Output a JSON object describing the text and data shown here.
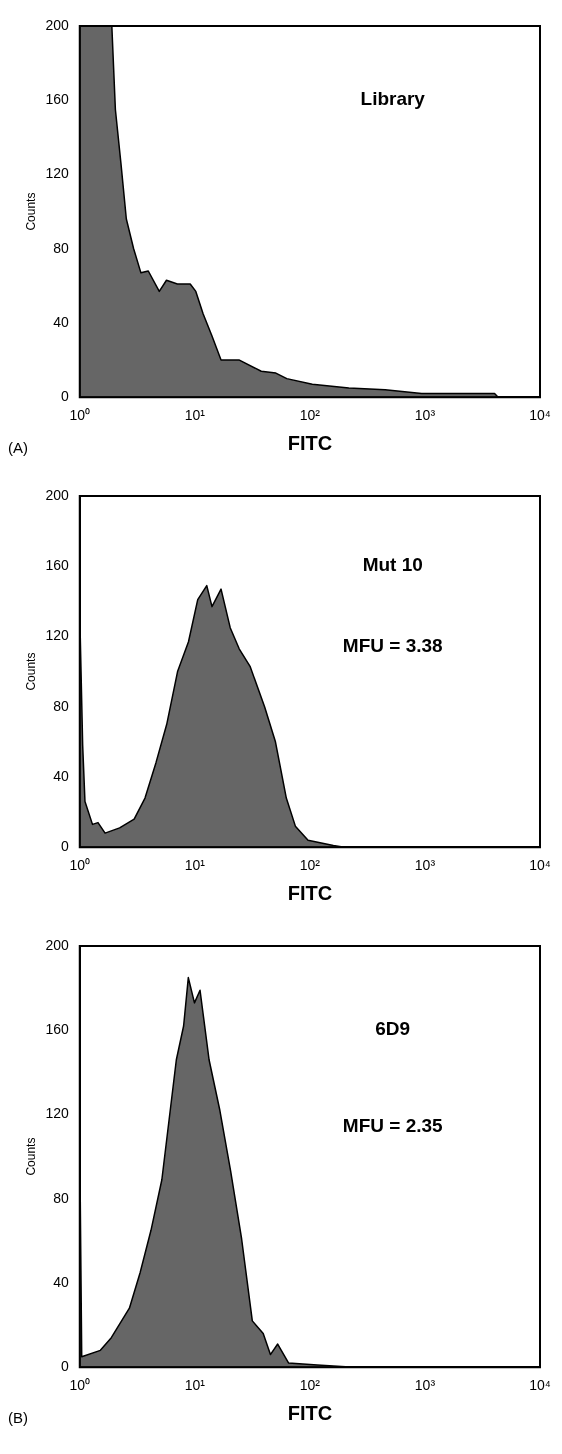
{
  "chart_data": [
    {
      "type": "area",
      "title": "(A)",
      "xlabel": "FITC",
      "ylabel": "Counts",
      "annotations": [
        "Library"
      ],
      "log": "x",
      "grid": false,
      "legend": false,
      "marker": "none",
      "color": "#404040",
      "x": [
        1,
        1.9,
        1.93,
        2.04,
        2.28,
        2.54,
        2.94,
        3.4,
        3.94,
        4.91,
        5.67,
        7.06,
        9.12,
        10.2,
        11.8,
        14.1,
        16.9,
        24.4,
        37.8,
        50.6,
        63,
        105,
        218,
        451,
        936,
        4027,
        4330
      ],
      "values": [
        200,
        200,
        190,
        155,
        126,
        96,
        80,
        67,
        68,
        57,
        63,
        61,
        61,
        57,
        45,
        33,
        20,
        20,
        14,
        13,
        10,
        7,
        5,
        4,
        2,
        2,
        0
      ],
      "xlim": [
        1,
        10000
      ],
      "xticks": [
        {
          "value": 1,
          "label": "10⁰"
        },
        {
          "value": 10,
          "label": "10¹"
        },
        {
          "value": 100,
          "label": "10²"
        },
        {
          "value": 1000,
          "label": "10³"
        },
        {
          "value": 10000,
          "label": "10⁴"
        }
      ],
      "ylim": [
        0,
        200
      ],
      "yticks": [
        0,
        40,
        80,
        120,
        160,
        200
      ]
    },
    {
      "type": "area",
      "xlabel": "FITC",
      "ylabel": "Counts",
      "annotations": [
        "Mut 10",
        "MFU = 3.38"
      ],
      "log": "x",
      "grid": false,
      "legend": false,
      "marker": "none",
      "color": "#404040",
      "x": [
        1,
        1.06,
        1.11,
        1.29,
        1.44,
        1.66,
        2.22,
        2.97,
        3.69,
        4.59,
        5.7,
        7.08,
        8.81,
        10.6,
        12.7,
        14.1,
        16.9,
        20.3,
        24.3,
        30.2,
        40.4,
        50.2,
        62.4,
        74.8,
        96.4,
        160,
        199
      ],
      "values": [
        133,
        58,
        26,
        13,
        14,
        8,
        11,
        16,
        28,
        48,
        70,
        100,
        117,
        141,
        149,
        137,
        147,
        125,
        113,
        103,
        80,
        60,
        28,
        12,
        4,
        1,
        0
      ],
      "xlim": [
        1,
        10000
      ],
      "xticks": [
        {
          "value": 1,
          "label": "10⁰"
        },
        {
          "value": 10,
          "label": "10¹"
        },
        {
          "value": 100,
          "label": "10²"
        },
        {
          "value": 1000,
          "label": "10³"
        },
        {
          "value": 10000,
          "label": "10⁴"
        }
      ],
      "ylim": [
        0,
        200
      ],
      "yticks": [
        0,
        40,
        80,
        120,
        160,
        200
      ]
    },
    {
      "type": "area",
      "title": "(B)",
      "xlabel": "FITC",
      "ylabel": "Counts",
      "annotations": [
        "6D9",
        "MFU = 2.35"
      ],
      "log": "x",
      "grid": false,
      "legend": false,
      "marker": "none",
      "color": "#404040",
      "x": [
        1,
        1.04,
        1.51,
        1.88,
        2.7,
        3.35,
        4.16,
        5.17,
        6.91,
        7.99,
        8.78,
        9.93,
        11.1,
        13.3,
        16.5,
        20.5,
        25.5,
        31.6,
        39.3,
        45.4,
        52.5,
        65.2,
        116,
        240
      ],
      "values": [
        106,
        5,
        8,
        14,
        28,
        45,
        65,
        89,
        146,
        162,
        185,
        173,
        179,
        146,
        122,
        93,
        61,
        22,
        16,
        6,
        11,
        2,
        1,
        0
      ],
      "xlim": [
        1,
        10000
      ],
      "xticks": [
        {
          "value": 1,
          "label": "10⁰"
        },
        {
          "value": 10,
          "label": "10¹"
        },
        {
          "value": 100,
          "label": "10²"
        },
        {
          "value": 1000,
          "label": "10³"
        },
        {
          "value": 10000,
          "label": "10⁴"
        }
      ],
      "ylim": [
        0,
        200
      ],
      "yticks": [
        0,
        40,
        80,
        120,
        160,
        200
      ]
    }
  ]
}
